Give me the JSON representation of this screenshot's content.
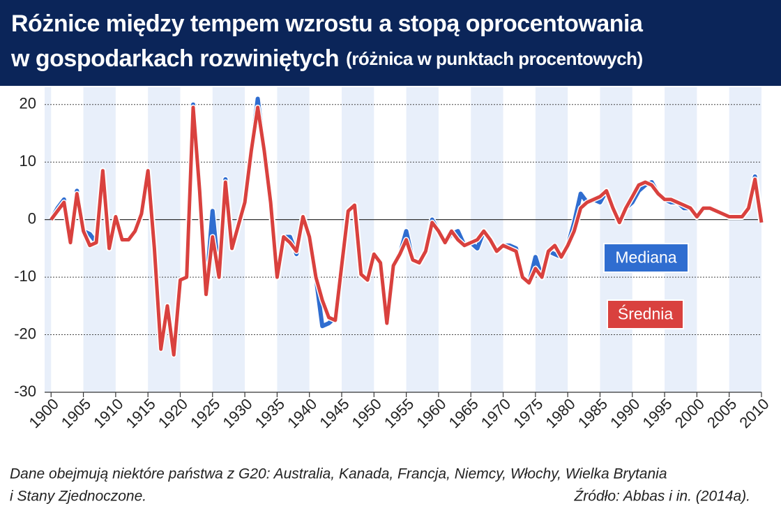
{
  "chart_data": {
    "type": "line",
    "title": [
      "Różnice między tempem wzrostu a stopą oprocentowania",
      "w gospodarkach rozwiniętych"
    ],
    "subtitle": "(różnica w punktach procentowych)",
    "note": [
      "Dane obejmują niektóre państwa z G20: Australia, Kanada, Francja, Niemcy, Włochy, Wielka Brytania",
      "i Stany Zjednoczone."
    ],
    "source": "Źródło: Abbas i in. (2014a).",
    "x": [
      1900,
      1901,
      1902,
      1903,
      1904,
      1905,
      1906,
      1907,
      1908,
      1909,
      1910,
      1911,
      1912,
      1913,
      1914,
      1915,
      1916,
      1917,
      1918,
      1919,
      1920,
      1921,
      1922,
      1923,
      1924,
      1925,
      1926,
      1927,
      1928,
      1929,
      1930,
      1931,
      1932,
      1933,
      1934,
      1935,
      1936,
      1937,
      1938,
      1939,
      1940,
      1941,
      1942,
      1943,
      1944,
      1945,
      1946,
      1947,
      1948,
      1949,
      1950,
      1951,
      1952,
      1953,
      1954,
      1955,
      1956,
      1957,
      1958,
      1959,
      1960,
      1961,
      1962,
      1963,
      1964,
      1965,
      1966,
      1967,
      1968,
      1969,
      1970,
      1971,
      1972,
      1973,
      1974,
      1975,
      1976,
      1977,
      1978,
      1979,
      1980,
      1981,
      1982,
      1983,
      1984,
      1985,
      1986,
      1987,
      1988,
      1989,
      1990,
      1991,
      1992,
      1993,
      1994,
      1995,
      1996,
      1997,
      1998,
      1999,
      2000,
      2001,
      2002,
      2003,
      2004,
      2005,
      2006,
      2007,
      2008,
      2009,
      2010
    ],
    "series": [
      {
        "name": "Mediana",
        "color": "#2f6dd0",
        "values": [
          0,
          2,
          3.5,
          -3.5,
          5,
          -2,
          -2.5,
          -4,
          8.5,
          -5,
          0.5,
          -3.5,
          -3.5,
          -2,
          1,
          8.5,
          -5,
          -22,
          -15,
          -23,
          -10.5,
          -10,
          20,
          5,
          -12.5,
          1.5,
          -10,
          7,
          -5,
          -1,
          3,
          12,
          21,
          12,
          3,
          -10,
          -3,
          -3,
          -6,
          0.5,
          -3,
          -10,
          -18.5,
          -18,
          -17,
          -8,
          1.5,
          2.5,
          -9.5,
          -10.5,
          -6,
          -7.5,
          -18,
          -8,
          -6,
          -2,
          -7,
          -7.5,
          -5.5,
          0,
          -2,
          -4,
          -2.5,
          -2,
          -4.5,
          -4,
          -5,
          -2,
          -3.5,
          -5.5,
          -4.5,
          -4.5,
          -5,
          -10,
          -11,
          -6.5,
          -10,
          -5.5,
          -6,
          -6.5,
          -4.5,
          -0.5,
          4.5,
          3,
          3.5,
          3,
          5,
          2,
          -0.5,
          2,
          3,
          5,
          6,
          6.5,
          4.5,
          3.5,
          3,
          3,
          2,
          2,
          0.5,
          2,
          2,
          1.5,
          1,
          0.5,
          0.5,
          0.5,
          2,
          7.5,
          -0.5
        ]
      },
      {
        "name": "Średnia",
        "color": "#d9413e",
        "values": [
          0,
          1.5,
          3,
          -4,
          4.5,
          -2,
          -4.5,
          -4,
          8.5,
          -5,
          0.5,
          -3.5,
          -3.5,
          -2,
          1,
          8.5,
          -5,
          -22.5,
          -15,
          -23.5,
          -10.5,
          -10,
          19.5,
          5,
          -13,
          -3,
          -10,
          6.5,
          -5,
          -1,
          3,
          12,
          19.5,
          12,
          3,
          -10,
          -3,
          -4,
          -5.5,
          0.5,
          -3,
          -10,
          -14,
          -17,
          -17.5,
          -8,
          1.5,
          2.5,
          -9.5,
          -10.5,
          -6,
          -7.5,
          -18,
          -8,
          -6,
          -3.5,
          -7,
          -7.5,
          -5.5,
          -0.5,
          -2,
          -4,
          -2,
          -3.5,
          -4.5,
          -4,
          -3.5,
          -2,
          -3.5,
          -5.5,
          -4.5,
          -5,
          -5.5,
          -10,
          -11,
          -8.5,
          -10,
          -5.5,
          -4.5,
          -6.5,
          -4.5,
          -2,
          2,
          3,
          3.5,
          4,
          5,
          2,
          -0.5,
          2,
          4,
          6,
          6.5,
          6,
          4.5,
          3.5,
          3.5,
          3,
          2.5,
          2,
          0.5,
          2,
          2,
          1.5,
          1,
          0.5,
          0.5,
          0.5,
          2,
          7,
          -0.5
        ]
      }
    ],
    "xlim": [
      1899,
      2010
    ],
    "xticks": [
      1900,
      1905,
      1910,
      1915,
      1920,
      1925,
      1930,
      1935,
      1940,
      1945,
      1950,
      1955,
      1960,
      1965,
      1970,
      1975,
      1980,
      1985,
      1990,
      1995,
      2000,
      2005,
      2010
    ],
    "ylim": [
      -30,
      23
    ],
    "yticks": [
      -30,
      -20,
      -10,
      0,
      10,
      20
    ],
    "grid": true
  }
}
